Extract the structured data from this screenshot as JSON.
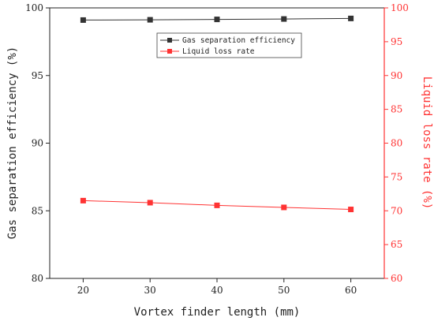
{
  "chart_data": {
    "type": "line",
    "x": [
      20,
      30,
      40,
      50,
      60
    ],
    "xlabel": "Vortex finder length (mm)",
    "xticks": [
      20,
      30,
      40,
      50,
      60
    ],
    "xlim": [
      15,
      65
    ],
    "series": [
      {
        "name": "Gas separation efficiency",
        "axis": "left",
        "values": [
          99.1,
          99.12,
          99.15,
          99.18,
          99.22
        ],
        "color": "#333333",
        "marker": "square"
      },
      {
        "name": "Liquid loss rate",
        "axis": "right",
        "values": [
          71.5,
          71.2,
          70.8,
          70.5,
          70.2
        ],
        "color": "#ff3333",
        "marker": "square"
      }
    ],
    "y_left": {
      "label": "Gas separation efficiency (%)",
      "ylim": [
        80,
        100
      ],
      "ticks": [
        80,
        85,
        90,
        95,
        100
      ],
      "color": "#222222"
    },
    "y_right": {
      "label": "Liquid loss rate (%)",
      "ylim": [
        60,
        100
      ],
      "ticks": [
        60,
        65,
        70,
        75,
        80,
        85,
        90,
        95,
        100
      ],
      "color": "#ff3333"
    },
    "legend_position": "top-right",
    "grid": false
  }
}
